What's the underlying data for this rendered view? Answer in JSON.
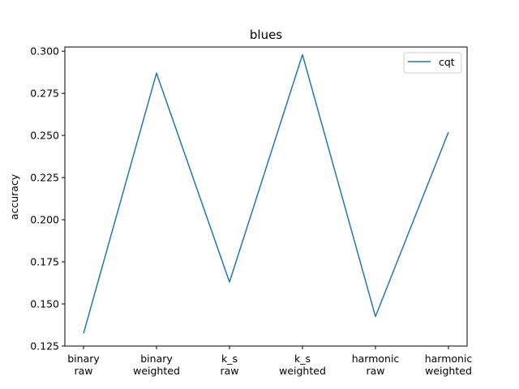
{
  "chart_data": {
    "type": "line",
    "title": "blues",
    "xlabel": "",
    "ylabel": "accuracy",
    "categories": [
      [
        "binary",
        "raw"
      ],
      [
        "binary",
        "weighted"
      ],
      [
        "k_s",
        "raw"
      ],
      [
        "k_s",
        "weighted"
      ],
      [
        "harmonic",
        "raw"
      ],
      [
        "harmonic",
        "weighted"
      ]
    ],
    "series": [
      {
        "name": "cqt",
        "color": "#1f77b4",
        "values": [
          0.1325,
          0.287,
          0.163,
          0.298,
          0.1425,
          0.252
        ]
      }
    ],
    "yticks": [
      "0.125",
      "0.150",
      "0.175",
      "0.200",
      "0.225",
      "0.250",
      "0.275",
      "0.300"
    ],
    "ylim": [
      0.125,
      0.3025
    ],
    "grid": false,
    "legend": {
      "position": "top-right"
    }
  }
}
